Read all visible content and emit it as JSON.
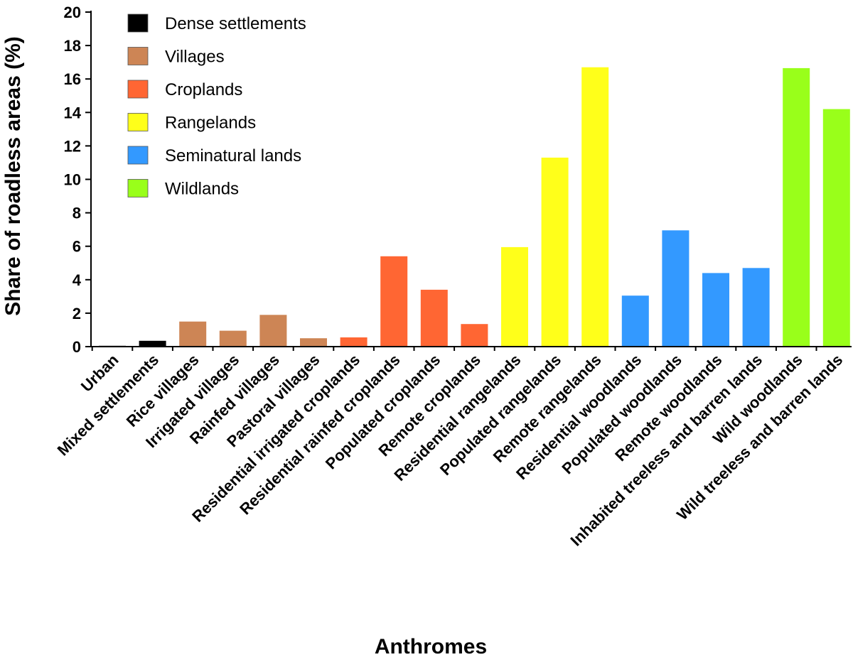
{
  "chart_data": {
    "type": "bar",
    "title": "",
    "xlabel": "Anthromes",
    "ylabel": "Share of roadless areas (%)",
    "ylim": [
      0,
      20
    ],
    "yticks": [
      0,
      2,
      4,
      6,
      8,
      10,
      12,
      14,
      16,
      18,
      20
    ],
    "grid": false,
    "legend_position": "top-left",
    "groups": [
      {
        "name": "Dense settlements",
        "color": "#000000"
      },
      {
        "name": "Villages",
        "color": "#cd8555"
      },
      {
        "name": "Croplands",
        "color": "#ff6633"
      },
      {
        "name": "Rangelands",
        "color": "#ffff1a"
      },
      {
        "name": "Seminatural lands",
        "color": "#3399ff"
      },
      {
        "name": "Wildlands",
        "color": "#99ff1a"
      }
    ],
    "categories": [
      "Urban",
      "Mixed settlements",
      "Rice villages",
      "Irrigated villages",
      "Rainfed villages",
      "Pastoral villages",
      "Residential irrigated croplands",
      "Residential rainfed croplands",
      "Populated croplands",
      "Remote croplands",
      "Residential rangelands",
      "Populated rangelands",
      "Remote rangelands",
      "Residential woodlands",
      "Populated woodlands",
      "Remote woodlands",
      "Inhabited treeless and barren lands",
      "Wild woodlands",
      "Wild treeless and barren lands"
    ],
    "values": [
      0.05,
      0.35,
      1.5,
      0.95,
      1.9,
      0.5,
      0.55,
      5.4,
      3.4,
      1.35,
      5.95,
      11.3,
      16.7,
      3.05,
      6.95,
      4.4,
      4.7,
      16.65,
      14.2
    ],
    "group_index": [
      0,
      0,
      1,
      1,
      1,
      1,
      2,
      2,
      2,
      2,
      3,
      3,
      3,
      4,
      4,
      4,
      4,
      5,
      5
    ]
  }
}
